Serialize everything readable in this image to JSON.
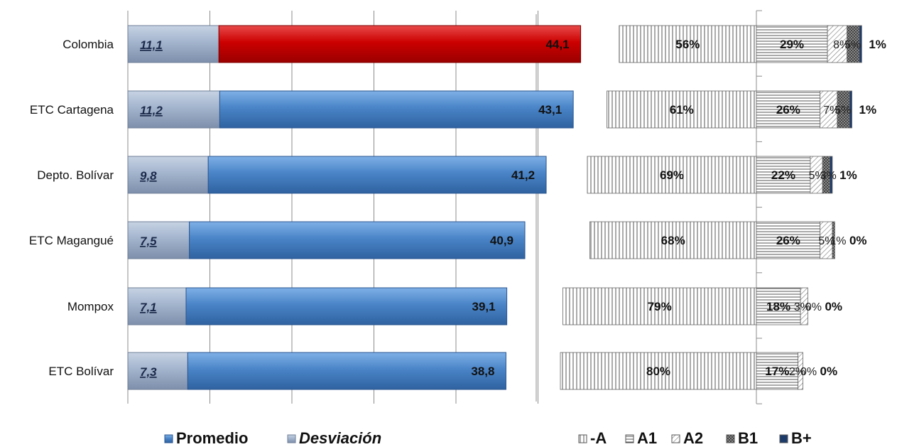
{
  "chart_data": [
    {
      "type": "bar",
      "orientation": "horizontal",
      "stacked": true,
      "categories": [
        "Colombia",
        "ETC Cartagena",
        "Depto. Bolívar",
        "ETC Magangué",
        "Mompox",
        "ETC Bolívar"
      ],
      "series": [
        {
          "name": "Desviación",
          "values": [
            11.1,
            11.2,
            9.8,
            7.5,
            7.1,
            7.3
          ],
          "labels": [
            "11,1",
            "11,2",
            "9,8",
            "7,5",
            "7,1",
            "7,3"
          ],
          "color": "#9fb2cc"
        },
        {
          "name": "Promedio",
          "values": [
            44.1,
            43.1,
            41.2,
            40.9,
            39.1,
            38.8
          ],
          "labels": [
            "44,1",
            "43,1",
            "41,2",
            "40,9",
            "39,1",
            "38,8"
          ],
          "color": "#4a82c4",
          "highlight": {
            "category": "Colombia",
            "color": "#cc0000"
          }
        }
      ],
      "xlim": [
        0,
        55
      ],
      "grid": true,
      "legend": {
        "position": "bottom",
        "entries": [
          "Promedio",
          "Desviación"
        ]
      }
    },
    {
      "type": "bar",
      "orientation": "horizontal",
      "stacked": true,
      "diverging": true,
      "categories": [
        "Colombia",
        "ETC Cartagena",
        "Depto. Bolívar",
        "ETC Magangué",
        "Mompox",
        "ETC Bolívar"
      ],
      "series": [
        {
          "name": "-A",
          "direction": "left",
          "values": [
            56,
            61,
            69,
            68,
            79,
            80
          ]
        },
        {
          "name": "A1",
          "direction": "right",
          "values": [
            29,
            26,
            22,
            26,
            18,
            17
          ]
        },
        {
          "name": "A2",
          "direction": "right",
          "values": [
            8,
            7,
            5,
            5,
            3,
            2
          ]
        },
        {
          "name": "B1",
          "direction": "right",
          "values": [
            5,
            5,
            3,
            1,
            0,
            0
          ]
        },
        {
          "name": "B+",
          "direction": "right",
          "values": [
            1,
            1,
            1,
            0,
            0,
            0
          ]
        }
      ],
      "labels": [
        [
          "56%",
          "29%",
          "8%",
          "5%",
          "1%"
        ],
        [
          "61%",
          "26%",
          "7%",
          "5%",
          "1%"
        ],
        [
          "69%",
          "22%",
          "5%",
          "3%",
          "1%"
        ],
        [
          "68%",
          "26%",
          "5%",
          "1%",
          "0%"
        ],
        [
          "79%",
          "18%",
          "3%",
          "0%",
          "0%"
        ],
        [
          "80%",
          "17%",
          "2%",
          "0%",
          "0%"
        ]
      ],
      "legend": {
        "position": "bottom",
        "entries": [
          "-A",
          "A1",
          "A2",
          "B1",
          "B+"
        ]
      }
    }
  ]
}
